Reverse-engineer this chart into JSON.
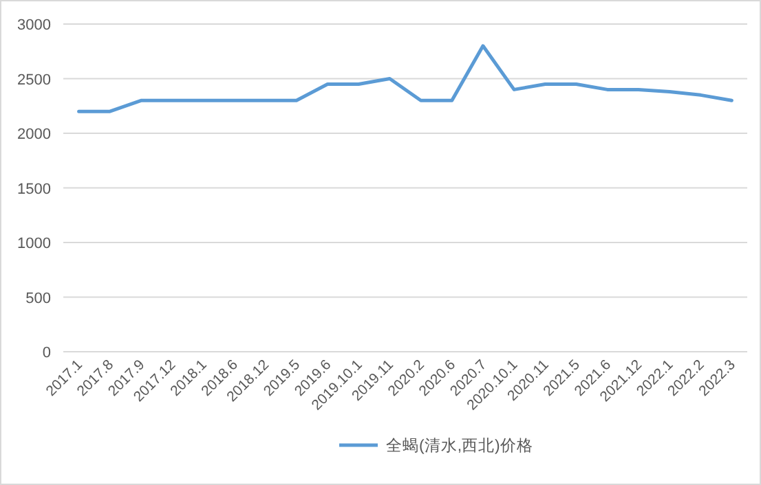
{
  "chart_data": {
    "type": "line",
    "categories": [
      "2017.1",
      "2017.8",
      "2017.9",
      "2017.12",
      "2018.1",
      "2018.6",
      "2018.12",
      "2019.5",
      "2019.6",
      "2019.10.1",
      "2019.11",
      "2020.2",
      "2020.6",
      "2020.7",
      "2020.10.1",
      "2020.11",
      "2021.5",
      "2021.6",
      "2021.12",
      "2022.1",
      "2022.2",
      "2022.3"
    ],
    "series": [
      {
        "name": "全蝎(清水,西北)价格",
        "color": "#5b9bd5",
        "values": [
          2200,
          2200,
          2300,
          2300,
          2300,
          2300,
          2300,
          2300,
          2450,
          2450,
          2500,
          2300,
          2300,
          2800,
          2400,
          2450,
          2450,
          2400,
          2400,
          2380,
          2350,
          2300
        ]
      }
    ],
    "ylim": [
      0,
      3000
    ],
    "yticks": [
      0,
      500,
      1000,
      1500,
      2000,
      2500,
      3000
    ],
    "grid": "y",
    "legend": "bottom",
    "marker": "none",
    "line_style": "solid"
  }
}
